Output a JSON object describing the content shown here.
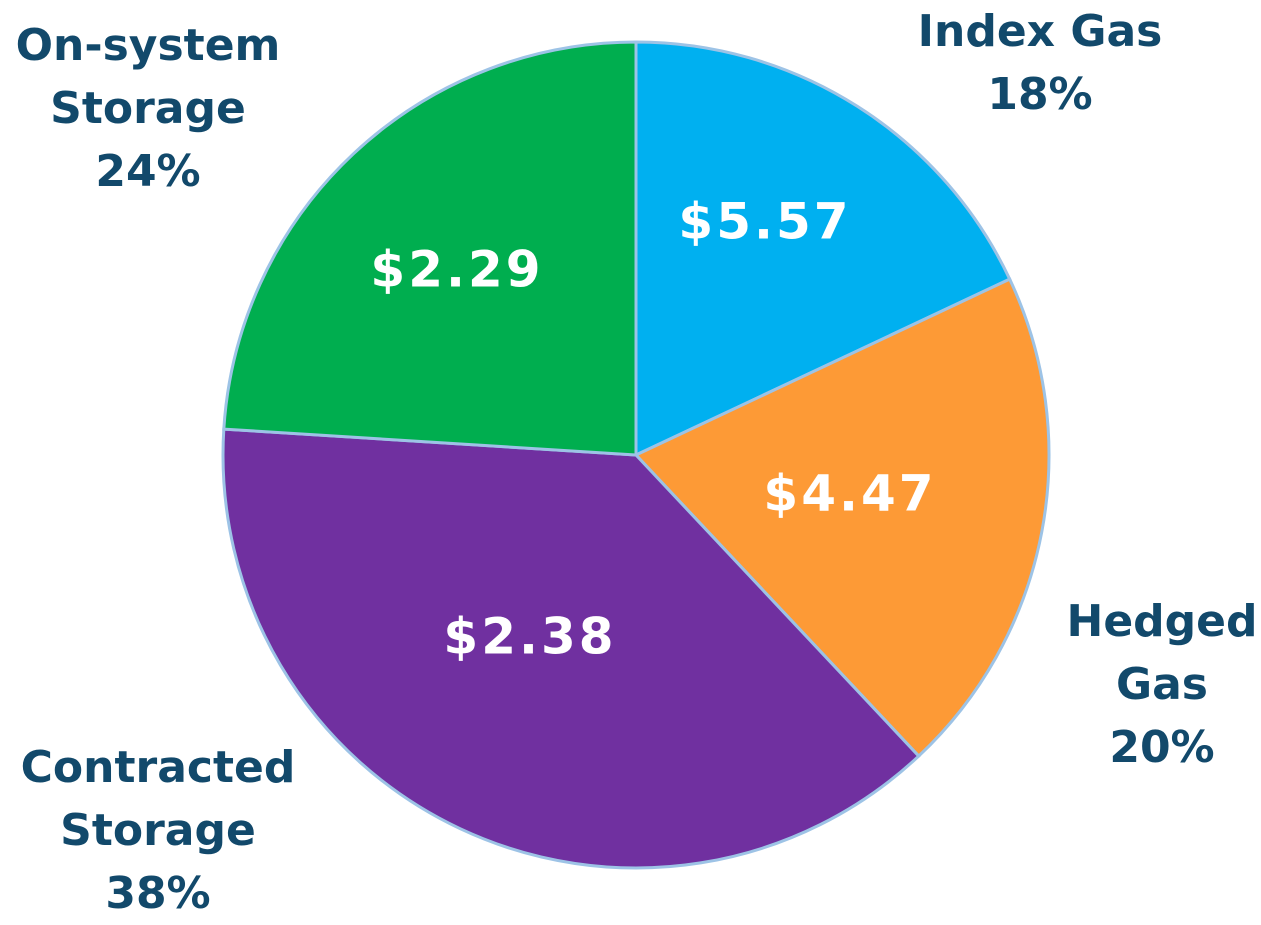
{
  "chart_data": {
    "type": "pie",
    "categories": [
      "Index Gas",
      "Hedged Gas",
      "Contracted Storage",
      "On-system Storage"
    ],
    "values": [
      18,
      20,
      38,
      24
    ],
    "value_labels": [
      "18%",
      "20%",
      "38%",
      "24%"
    ],
    "price_labels": [
      "$5.57",
      "$4.47",
      "$2.38",
      "$2.29"
    ],
    "colors": [
      "#00b0f0",
      "#fd9a36",
      "#7030a0",
      "#00ae4f"
    ]
  }
}
